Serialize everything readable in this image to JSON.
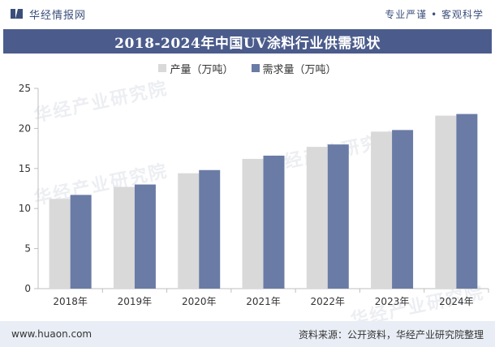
{
  "header": {
    "brand": "华经情报网",
    "tagline": "专业严谨 • 客观科学"
  },
  "watermark": "华经产业研究院",
  "colors": {
    "title_band": "#4b5c8c",
    "production": "#d9d9d9",
    "demand": "#6a7ba5"
  },
  "footer": {
    "url": "www.huaon.com",
    "source": "资料来源：公开资料，华经产业研究院整理"
  },
  "chart_data": {
    "type": "bar",
    "title": "2018-2024年中国UV涂料行业供需现状",
    "categories": [
      "2018年",
      "2019年",
      "2020年",
      "2021年",
      "2022年",
      "2023年",
      "2024年"
    ],
    "series": [
      {
        "name": "产量（万吨）",
        "values": [
          11.2,
          12.7,
          14.4,
          16.2,
          17.7,
          19.6,
          21.6
        ]
      },
      {
        "name": "需求量（万吨）",
        "values": [
          11.7,
          13.0,
          14.8,
          16.6,
          18.0,
          19.8,
          21.8
        ]
      }
    ],
    "yticks": [
      "0",
      "5",
      "10",
      "15",
      "20",
      "25"
    ],
    "ylim": [
      0,
      25
    ],
    "grid": false,
    "legend": "top-center"
  }
}
